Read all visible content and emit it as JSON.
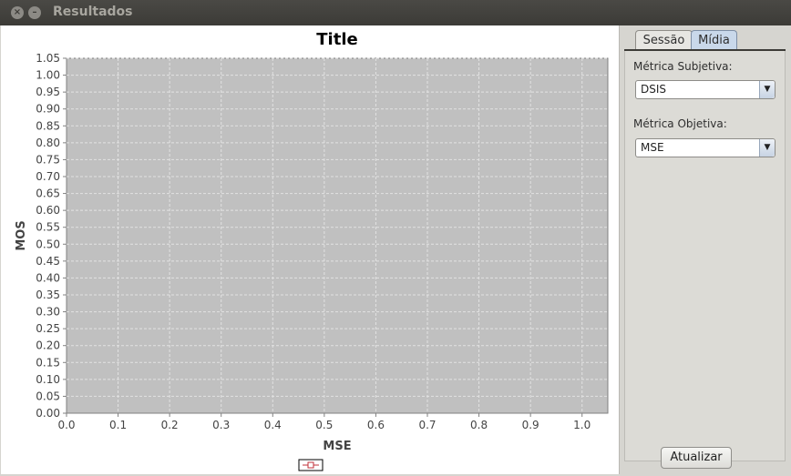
{
  "window": {
    "title": "Resultados"
  },
  "chart_data": {
    "type": "scatter",
    "title": "Title",
    "xlabel": "MSE",
    "ylabel": "MOS",
    "xlim": [
      0.0,
      1.05
    ],
    "ylim": [
      0.0,
      1.05
    ],
    "xticks": [
      "0.0",
      "0.1",
      "0.2",
      "0.3",
      "0.4",
      "0.5",
      "0.6",
      "0.7",
      "0.8",
      "0.9",
      "1.0"
    ],
    "yticks": [
      "0.00",
      "0.05",
      "0.10",
      "0.15",
      "0.20",
      "0.25",
      "0.30",
      "0.35",
      "0.40",
      "0.45",
      "0.50",
      "0.55",
      "0.60",
      "0.65",
      "0.70",
      "0.75",
      "0.80",
      "0.85",
      "0.90",
      "0.95",
      "1.00",
      "1.05"
    ],
    "grid": true,
    "legend": {
      "position": "bottom",
      "entries": [
        ""
      ]
    },
    "series": [],
    "colors": {
      "plot_bg": "#c0c0c0",
      "grid": "#e2e2e2",
      "legend_marker": "#c0303a"
    }
  },
  "side_panel": {
    "tabs": [
      {
        "label": "Sessão"
      },
      {
        "label": "Mídia"
      }
    ],
    "subjective_label": "Métrica Subjetiva:",
    "subjective_value": "DSIS",
    "objective_label": "Métrica Objetiva:",
    "objective_value": "MSE",
    "update_button": "Atualizar"
  }
}
